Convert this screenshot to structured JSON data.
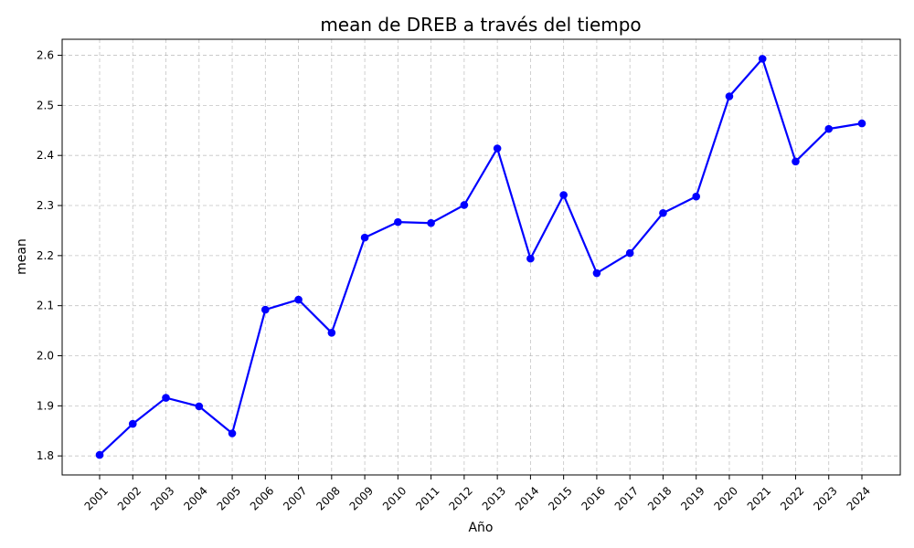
{
  "chart_data": {
    "type": "line",
    "title": "mean de DREB a través del tiempo",
    "xlabel": "Año",
    "ylabel": "mean",
    "categories": [
      "2001",
      "2002",
      "2003",
      "2004",
      "2005",
      "2006",
      "2007",
      "2008",
      "2009",
      "2010",
      "2011",
      "2012",
      "2013",
      "2014",
      "2015",
      "2016",
      "2017",
      "2018",
      "2019",
      "2020",
      "2021",
      "2022",
      "2023",
      "2024"
    ],
    "series": [
      {
        "values": [
          1.802,
          1.864,
          1.916,
          1.899,
          1.845,
          2.092,
          2.112,
          2.046,
          2.236,
          2.267,
          2.265,
          2.301,
          2.414,
          2.194,
          2.321,
          2.165,
          2.205,
          2.285,
          2.318,
          2.518,
          2.593,
          2.388,
          2.453,
          2.464
        ],
        "color": "#0000ff"
      }
    ],
    "ylim": [
      1.762,
      2.632
    ],
    "yticks": [
      1.8,
      1.9,
      2.0,
      2.1,
      2.2,
      2.3,
      2.4,
      2.5,
      2.6
    ],
    "ytick_labels": [
      "1.8",
      "1.9",
      "2.0",
      "2.1",
      "2.2",
      "2.3",
      "2.4",
      "2.5",
      "2.6"
    ],
    "grid": true,
    "marker": "circle",
    "x_tick_rotation_deg": 45
  }
}
